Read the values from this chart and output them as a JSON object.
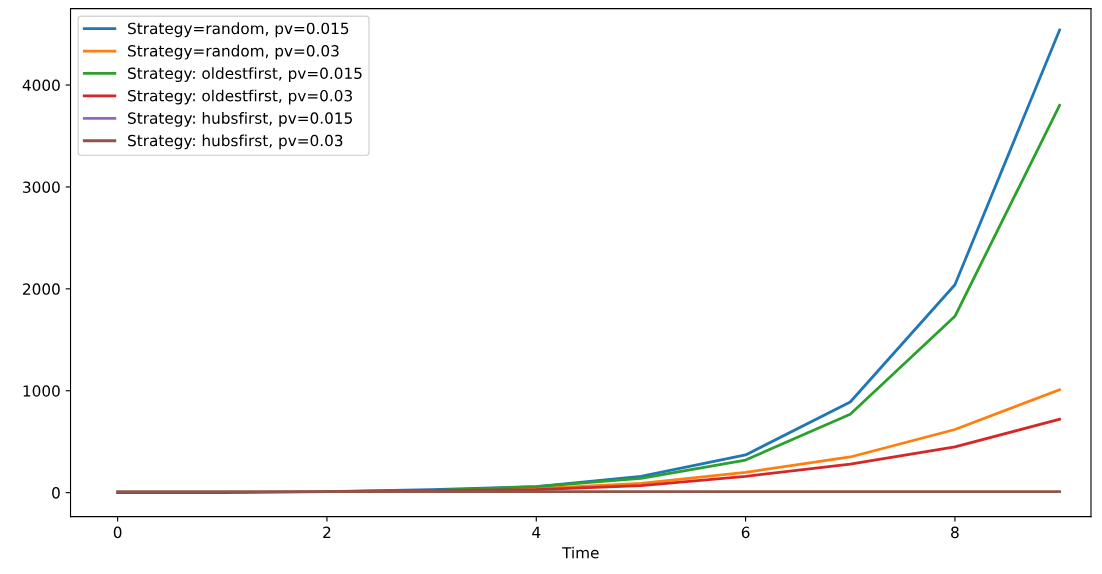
{
  "chart_data": {
    "type": "line",
    "xlabel": "Time",
    "x": [
      0,
      1,
      2,
      3,
      4,
      5,
      6,
      7,
      8,
      9
    ],
    "series": [
      {
        "name": "Strategy=random, pv=0.015",
        "color": "#1f77b4",
        "values": [
          null,
          null,
          10,
          30,
          60,
          160,
          370,
          890,
          2040,
          4540
        ]
      },
      {
        "name": "Strategy=random, pv=0.03",
        "color": "#ff7f0e",
        "values": [
          null,
          null,
          null,
          20,
          40,
          90,
          200,
          350,
          620,
          1010
        ]
      },
      {
        "name": "Strategy: oldestfirst, pv=0.015",
        "color": "#2ca02c",
        "values": [
          null,
          null,
          10,
          20,
          60,
          140,
          320,
          770,
          1730,
          3800
        ]
      },
      {
        "name": "Strategy: oldestfirst, pv=0.03",
        "color": "#d62728",
        "values": [
          0,
          0,
          10,
          20,
          30,
          70,
          160,
          280,
          450,
          720
        ]
      },
      {
        "name": "Strategy: hubsfirst, pv=0.015",
        "color": "#9467bd",
        "values": [
          null,
          null,
          null,
          null,
          null,
          null,
          null,
          null,
          null,
          null
        ]
      },
      {
        "name": "Strategy: hubsfirst, pv=0.03",
        "color": "#8c564b",
        "values": [
          10,
          10,
          10,
          10,
          10,
          10,
          10,
          10,
          10,
          10
        ]
      }
    ],
    "xlim": [
      -0.45,
      9.3
    ],
    "xticks": [
      0,
      2,
      4,
      6,
      8
    ],
    "ylim": [
      -235,
      4750
    ],
    "yticks": [
      0,
      1000,
      2000,
      3000,
      4000
    ],
    "grid": false,
    "legend": "top left",
    "marker": "none",
    "line_style": "solid"
  }
}
